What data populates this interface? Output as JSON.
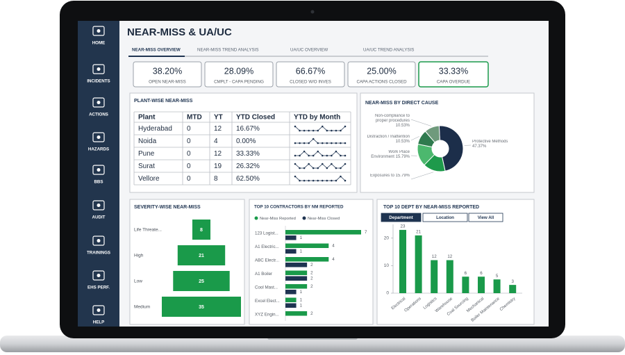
{
  "sidebar": {
    "items": [
      "HOME",
      "INCIDENTS",
      "ACTIONS",
      "HAZARDS",
      "BBS",
      "AUDIT",
      "TRAININGS",
      "EHS PERF.",
      "HELP"
    ]
  },
  "header": {
    "title": "NEAR-MISS & UA/UC",
    "tabs": [
      "NEAR-MISS OVERVIEW",
      "NEAR-MISS TREND ANALYSIS",
      "UA/UC OVERVIEW",
      "UA/UC TREND ANALYSIS"
    ],
    "active_tab": 0
  },
  "kpis": [
    {
      "value": "38.20%",
      "label": "OPEN NEAR-MISS"
    },
    {
      "value": "28.09%",
      "label": "CMPLT - CAPA PENDING"
    },
    {
      "value": "66.67%",
      "label": "CLOSED W/O INVES"
    },
    {
      "value": "25.00%",
      "label": "CAPA ACTIONS CLOSED"
    },
    {
      "value": "33.33%",
      "label": "CAPA OVERDUE"
    }
  ],
  "plant_table": {
    "title": "PLANT-WISE NEAR-MISS",
    "columns": [
      "Plant",
      "MTD",
      "YT",
      "YTD Closed",
      "YTD by Month"
    ],
    "rows": [
      [
        "Hyderabad",
        "0",
        "12",
        "16.67%"
      ],
      [
        "Noida",
        "0",
        "4",
        "0.00%"
      ],
      [
        "Pune",
        "0",
        "12",
        "33.33%"
      ],
      [
        "Surat",
        "0",
        "19",
        "26.32%"
      ],
      [
        "Vellore",
        "0",
        "8",
        "62.50%"
      ]
    ],
    "trends": [
      [
        2,
        1,
        1,
        1,
        1,
        1,
        2,
        1,
        1,
        1,
        1,
        2
      ],
      [
        1,
        1,
        1,
        1,
        2,
        1,
        1,
        1,
        1,
        1,
        1,
        1
      ],
      [
        1,
        1,
        2,
        1,
        1,
        2,
        1,
        1,
        1,
        2,
        1,
        1
      ],
      [
        2,
        1,
        1,
        2,
        1,
        1,
        2,
        1,
        2,
        1,
        1,
        2
      ],
      [
        2,
        1,
        1,
        1,
        1,
        1,
        1,
        1,
        1,
        1,
        2,
        1
      ]
    ]
  },
  "chart_data": [
    {
      "type": "donut",
      "title": "NEAR-MISS BY DIRECT CAUSE",
      "categories": [
        "Protective Methods",
        "Exposures to",
        "Work Place Environment",
        "Distraction / Inattention",
        "Non-compliance to proper procedures"
      ],
      "values": [
        47.37,
        15.79,
        15.79,
        10.53,
        10.53
      ],
      "value_labels": [
        "47.37%",
        "15.79%",
        "15.79%",
        "10.53%",
        "10.53%"
      ],
      "colors": [
        "#1c2e4a",
        "#1e9a4b",
        "#4cb86e",
        "#2f7a4e",
        "#6f9a7c"
      ]
    },
    {
      "type": "funnel",
      "title": "SEVERITY-WISE NEAR-MISS",
      "categories": [
        "Life Threate...",
        "High",
        "Low",
        "Medium"
      ],
      "values": [
        8,
        21,
        25,
        35
      ],
      "color": "#1a9a4a"
    },
    {
      "type": "hbar",
      "title": "TOP 10 CONTRACTORS BY NM REPORTED",
      "categories": [
        "123 Logist...",
        "A1 Electric...",
        "ABC Electr...",
        "A1 Boiler",
        "Cool Mast...",
        "Excel Elect...",
        "XYZ Engin..."
      ],
      "series": [
        {
          "name": "Near-Miss Reported",
          "color": "#1a9a4a",
          "values": [
            7,
            4,
            4,
            2,
            2,
            1,
            2
          ]
        },
        {
          "name": "Near-Miss Closed",
          "color": "#1f3451",
          "values": [
            1,
            1,
            2,
            2,
            1,
            1,
            null
          ]
        }
      ]
    },
    {
      "type": "bar",
      "title": "TOP 10 DEPT BY NEAR-MISS REPORTED",
      "tabs": [
        "Department",
        "Location",
        "View All"
      ],
      "active_tab": 0,
      "categories": [
        "Electrical",
        "Operations",
        "Logistics",
        "Warehouse",
        "Coal Sourcing",
        "Mechanical",
        "Boiler Maintenance",
        "Chemistry"
      ],
      "values": [
        23,
        21,
        12,
        12,
        6,
        6,
        5,
        3
      ],
      "color": "#1a9a4a",
      "ylim": [
        0,
        25
      ],
      "yticks": [
        0,
        10,
        20
      ],
      "grid": false
    }
  ]
}
